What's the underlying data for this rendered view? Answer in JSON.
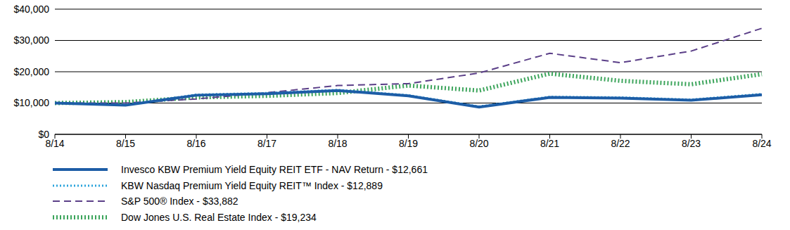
{
  "chart_data": {
    "type": "line",
    "categories": [
      "8/14",
      "8/15",
      "8/16",
      "8/17",
      "8/18",
      "8/19",
      "8/20",
      "8/21",
      "8/22",
      "8/23",
      "8/24"
    ],
    "series": [
      {
        "name": "Invesco KBW Premium Yield Equity REIT ETF - NAV Return - $12,661",
        "color": "#1d5da6",
        "line_style": "solid",
        "values": [
          10000,
          9300,
          12500,
          13000,
          14000,
          12300,
          8700,
          11800,
          11600,
          10900,
          12661
        ]
      },
      {
        "name": "KBW Nasdaq Premium Yield Equity REIT™ Index - $12,889",
        "color": "#2aa4dc",
        "line_style": "dotted",
        "values": [
          10000,
          9400,
          12700,
          13200,
          14200,
          12500,
          8900,
          12000,
          11800,
          11100,
          12889
        ]
      },
      {
        "name": "S&P 500® Index - $33,882",
        "color": "#5b3f88",
        "line_style": "dashed",
        "values": [
          10000,
          10000,
          11300,
          13300,
          15600,
          16200,
          19600,
          25900,
          22900,
          26600,
          33882
        ]
      },
      {
        "name": "Dow Jones U.S. Real Estate Index - $19,234",
        "color": "#3da55c",
        "line_style": "dotted",
        "values": [
          10000,
          10300,
          11800,
          12300,
          13200,
          15600,
          14000,
          19400,
          17100,
          16000,
          19234
        ]
      }
    ],
    "ylim": [
      0,
      40000
    ],
    "yticks": [
      {
        "value": 0,
        "label": "$0"
      },
      {
        "value": 10000,
        "label": "$10,000"
      },
      {
        "value": 20000,
        "label": "$20,000"
      },
      {
        "value": 30000,
        "label": "$30,000"
      },
      {
        "value": 40000,
        "label": "$40,000"
      }
    ],
    "grid": true,
    "legend": "bottom"
  }
}
